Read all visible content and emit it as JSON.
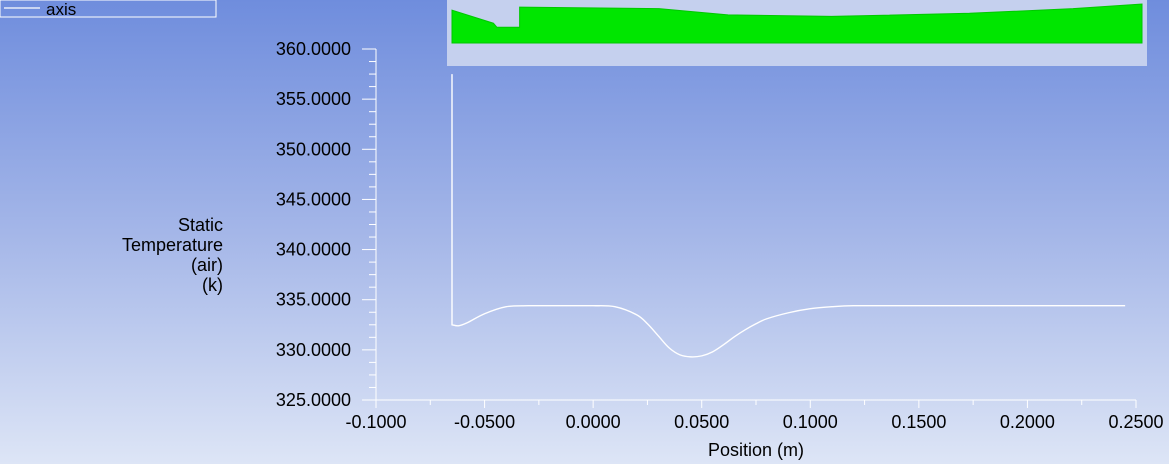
{
  "chart_data": {
    "type": "line",
    "xlabel": "Position (m)",
    "ylabel": [
      "Static",
      "Temperature",
      "(air)",
      "(k)"
    ],
    "xlim": [
      -0.1,
      0.25
    ],
    "ylim": [
      325,
      360
    ],
    "x_ticks": [
      "-0.1000",
      "-0.0500",
      "0.0000",
      "0.0500",
      "0.1000",
      "0.1500",
      "0.2000",
      "0.2500"
    ],
    "y_ticks": [
      "325.0000",
      "330.0000",
      "335.0000",
      "340.0000",
      "345.0000",
      "350.0000",
      "355.0000",
      "360.0000"
    ],
    "legend_position": "top-left",
    "grid": false,
    "series": [
      {
        "name": "axis",
        "color": "#ffffff",
        "x": [
          -0.065,
          -0.065,
          -0.062,
          -0.058,
          -0.05,
          -0.04,
          -0.03,
          -0.02,
          -0.01,
          0.0,
          0.01,
          0.02,
          0.025,
          0.03,
          0.035,
          0.04,
          0.045,
          0.05,
          0.055,
          0.06,
          0.065,
          0.07,
          0.075,
          0.08,
          0.09,
          0.1,
          0.11,
          0.12,
          0.14,
          0.16,
          0.2,
          0.245
        ],
        "y": [
          357.5,
          332.5,
          332.4,
          332.7,
          333.6,
          334.3,
          334.4,
          334.4,
          334.4,
          334.4,
          334.3,
          333.5,
          332.6,
          331.4,
          330.2,
          329.5,
          329.3,
          329.4,
          329.8,
          330.5,
          331.3,
          332.0,
          332.6,
          333.1,
          333.7,
          334.1,
          334.3,
          334.4,
          334.4,
          334.4,
          334.4,
          334.4
        ]
      }
    ]
  },
  "inset": {
    "fill_color": "#00e600",
    "panel_color": "#c5d0ee",
    "profile": [
      [
        0,
        0.2
      ],
      [
        0.06,
        0.62
      ],
      [
        0.065,
        0.75
      ],
      [
        0.098,
        0.75
      ],
      [
        0.098,
        0.1
      ],
      [
        0.3,
        0.15
      ],
      [
        0.4,
        0.35
      ],
      [
        0.55,
        0.4
      ],
      [
        0.75,
        0.3
      ],
      [
        0.9,
        0.15
      ],
      [
        1,
        0.0
      ]
    ]
  }
}
